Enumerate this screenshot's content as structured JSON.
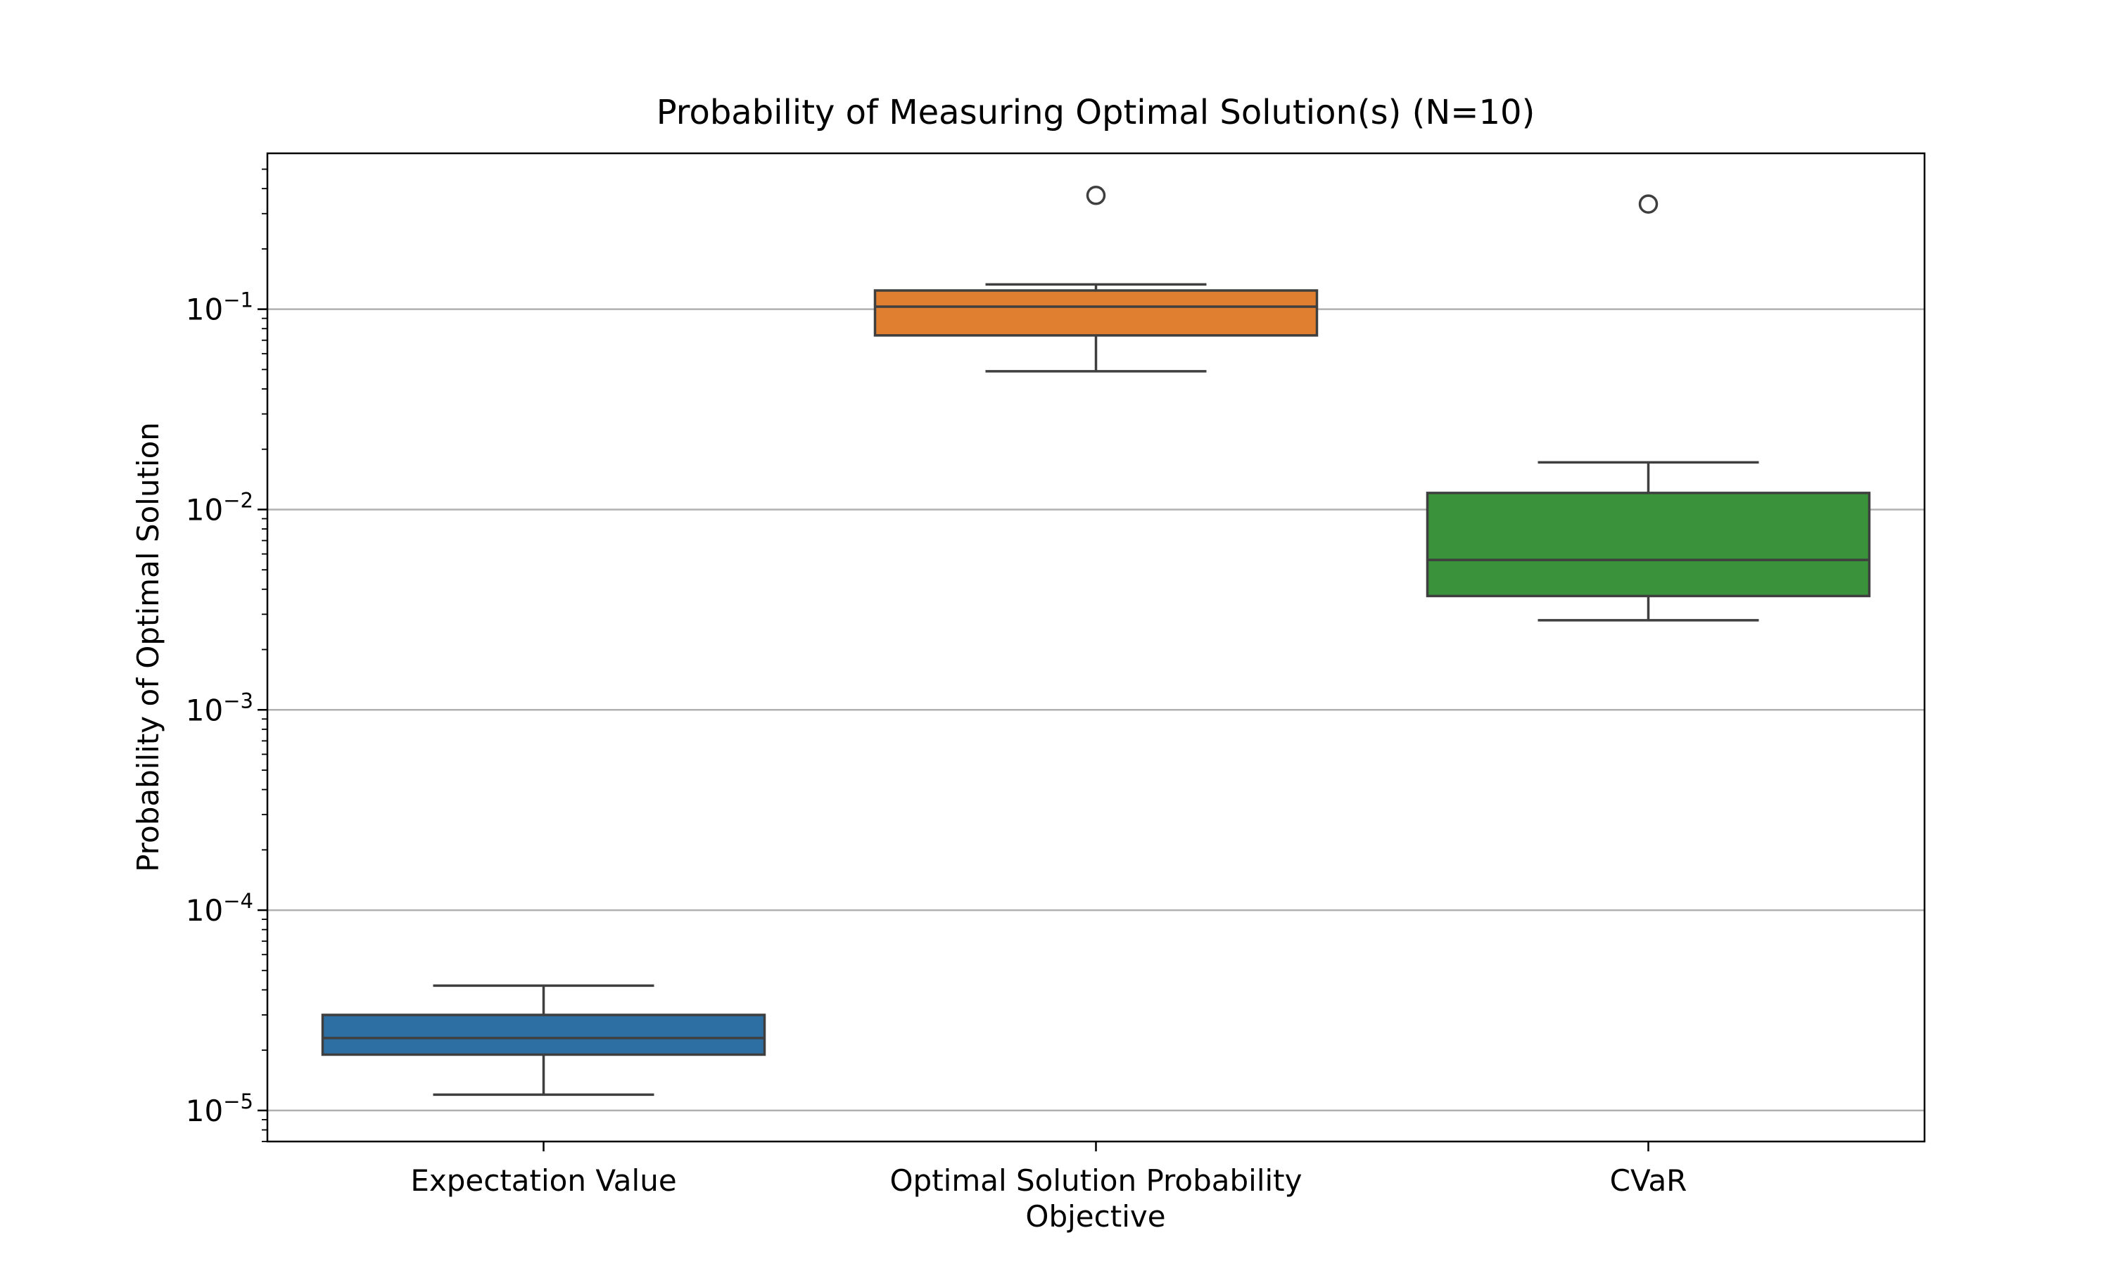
{
  "chart_data": {
    "type": "box",
    "title": "Probability of Measuring Optimal Solution(s) (N=10)",
    "xlabel": "Objective",
    "ylabel": "Probability of Optimal Solution",
    "yscale": "log",
    "ylim": [
      7e-06,
      0.6
    ],
    "yticks": [
      {
        "value": 1e-05,
        "base": "10",
        "exp": "−5"
      },
      {
        "value": 0.0001,
        "base": "10",
        "exp": "−4"
      },
      {
        "value": 0.001,
        "base": "10",
        "exp": "−3"
      },
      {
        "value": 0.01,
        "base": "10",
        "exp": "−2"
      },
      {
        "value": 0.1,
        "base": "10",
        "exp": "−1"
      }
    ],
    "grid": "y-major",
    "categories": [
      "Expectation Value",
      "Optimal Solution Probability",
      "CVaR"
    ],
    "boxes": [
      {
        "category": "Expectation Value",
        "color": "#2e6fa3",
        "whisker_low": 1.2e-05,
        "q1": 1.9e-05,
        "median": 2.3e-05,
        "q3": 3e-05,
        "whisker_high": 4.2e-05,
        "fliers": []
      },
      {
        "category": "Optimal Solution Probability",
        "color": "#e17f30",
        "whisker_low": 0.049,
        "q1": 0.074,
        "median": 0.103,
        "q3": 0.124,
        "whisker_high": 0.133,
        "fliers": [
          0.37
        ]
      },
      {
        "category": "CVaR",
        "color": "#3a923a",
        "whisker_low": 0.0028,
        "q1": 0.0037,
        "median": 0.0056,
        "q3": 0.0121,
        "whisker_high": 0.0172,
        "fliers": [
          0.335
        ]
      }
    ]
  }
}
